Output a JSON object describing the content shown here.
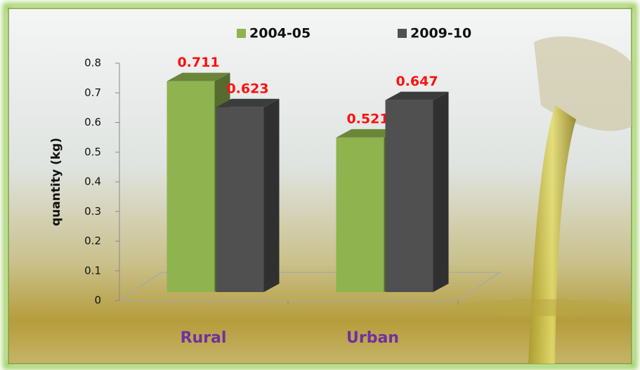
{
  "chart_data": {
    "type": "bar",
    "y_label": "quantity (kg)",
    "categories": [
      "Rural",
      "Urban"
    ],
    "series": [
      {
        "name": "2004-05",
        "color": "#8fb34f",
        "values": [
          0.711,
          0.521
        ]
      },
      {
        "name": "2009-10",
        "color": "#505050",
        "values": [
          0.623,
          0.647
        ]
      }
    ],
    "ylim": [
      0,
      0.8
    ],
    "yticks": [
      0,
      0.1,
      0.2,
      0.3,
      0.4,
      0.5,
      0.6,
      0.7,
      0.8
    ],
    "legend": "top",
    "grid": false
  }
}
